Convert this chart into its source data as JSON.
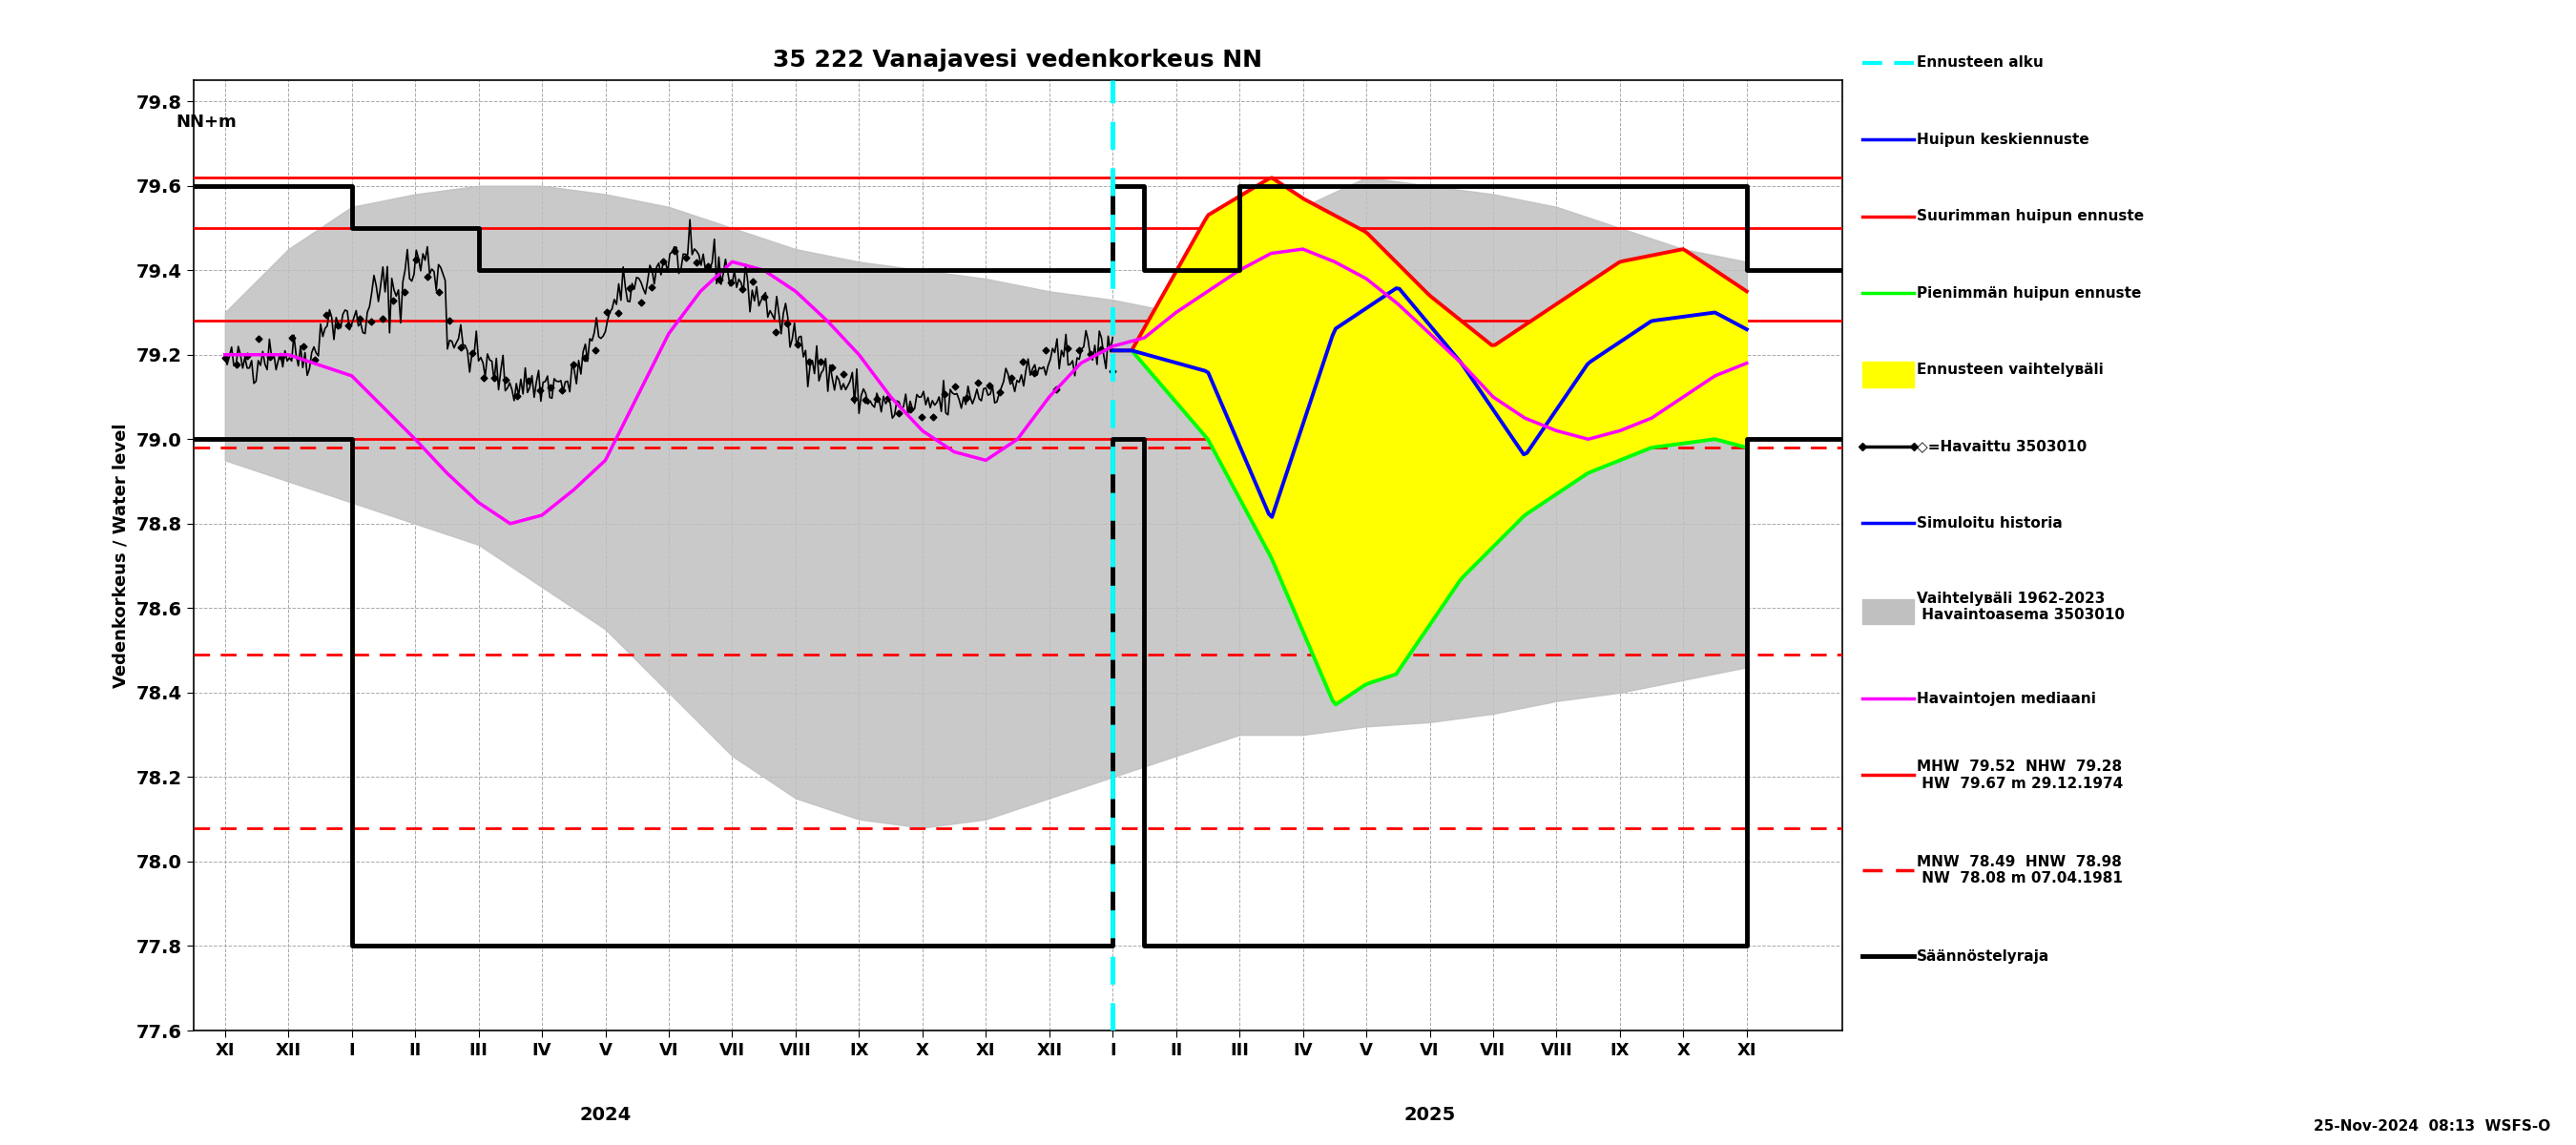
{
  "title": "35 222 Vanajavesi vedenkorkeus NN",
  "ylabel_left": "Vedenkorkeus / Water level",
  "ylabel_right": "NN+m",
  "ylim": [
    77.6,
    79.85
  ],
  "yticks": [
    77.6,
    77.8,
    78.0,
    78.2,
    78.4,
    78.6,
    78.8,
    79.0,
    79.2,
    79.4,
    79.6,
    79.8
  ],
  "background_color": "#ffffff",
  "title_fontsize": 18,
  "footnote": "25-Nov-2024  08:13  WSFS-O",
  "solid_red_lines": [
    79.62,
    79.5,
    79.28,
    79.0
  ],
  "dashed_red_lines": [
    78.98,
    78.49,
    78.08
  ],
  "x_tick_positions": [
    -2,
    -1,
    0,
    1,
    2,
    3,
    4,
    5,
    6,
    7,
    8,
    9,
    10,
    11,
    12,
    13,
    14,
    15,
    16,
    17,
    18,
    19,
    20,
    21,
    22
  ],
  "x_tick_labels": [
    "XI",
    "XII",
    "I",
    "II",
    "III",
    "IV",
    "V",
    "VI",
    "VII",
    "VIII",
    "IX",
    "X",
    "XI",
    "XII",
    "I",
    "II",
    "III",
    "IV",
    "V",
    "VI",
    "VII",
    "VIII",
    "IX",
    "X",
    "XI"
  ],
  "year_2024_x": 4,
  "year_2025_x": 17,
  "forecast_start_x": 12,
  "xlim": [
    -2.5,
    23.5
  ],
  "legend_texts": [
    [
      "Ennusteen alku",
      0.945
    ],
    [
      "Huipun keskiennuste",
      0.878
    ],
    [
      "Suurimman huipun ennuste",
      0.811
    ],
    [
      "Pienimmän huipun ennuste",
      0.744
    ],
    [
      "Ennusteen vaihtelувäli",
      0.677
    ],
    [
      "◇=Havaittu 3503010",
      0.61
    ],
    [
      "Simuloitu historia",
      0.543
    ],
    [
      "Vaihtelувäli 1962-2023\n Havaintoasema 3503010",
      0.47
    ],
    [
      "Havaintojen mediaani",
      0.39
    ],
    [
      "MHW  79.52  NHW  79.28\n HW  79.67 m 29.12.1974",
      0.323
    ],
    [
      "MNW  78.49  HNW  78.98\n NW  78.08 m 07.04.1981",
      0.24
    ],
    [
      "Säännöstelyraja",
      0.165
    ]
  ]
}
